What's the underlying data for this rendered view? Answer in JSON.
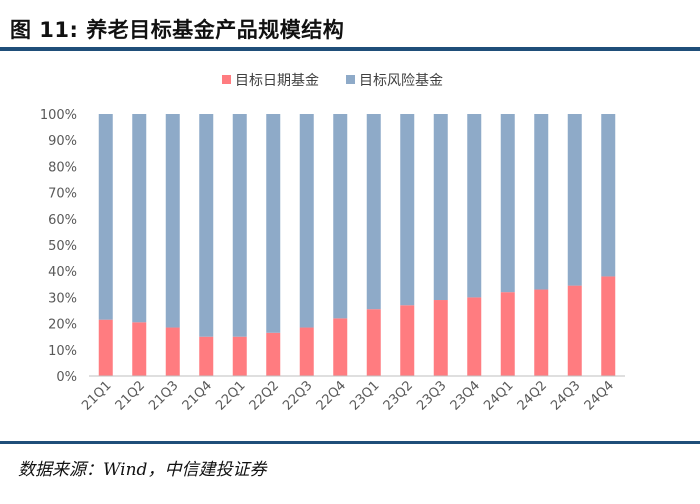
{
  "header": {
    "title": "图 11: 养老目标基金产品规模结构"
  },
  "footer": {
    "source": "数据来源：Wind，中信建投证券"
  },
  "colors": {
    "date_fund": "#ff7c80",
    "risk_fund": "#8eaac8",
    "axis": "#bfbfbf",
    "rule": "#1f4e79"
  },
  "chart_data": {
    "type": "bar",
    "stacked": true,
    "percent": true,
    "categories": [
      "21Q1",
      "21Q2",
      "21Q3",
      "21Q4",
      "22Q1",
      "22Q2",
      "22Q3",
      "22Q4",
      "23Q1",
      "23Q2",
      "23Q3",
      "23Q4",
      "24Q1",
      "24Q2",
      "24Q3",
      "24Q4"
    ],
    "series": [
      {
        "name": "目标日期基金",
        "color": "#ff7c80",
        "values": [
          21.5,
          20.5,
          18.5,
          15,
          15,
          16.5,
          18.5,
          22,
          25.5,
          27,
          29,
          30,
          32,
          33,
          34.5,
          38
        ]
      },
      {
        "name": "目标风险基金",
        "color": "#8eaac8",
        "values": [
          78.5,
          79.5,
          81.5,
          85,
          85,
          83.5,
          81.5,
          78,
          74.5,
          73,
          71,
          70,
          68,
          67,
          65.5,
          62
        ]
      }
    ],
    "y_ticks": [
      "0%",
      "10%",
      "20%",
      "30%",
      "40%",
      "50%",
      "60%",
      "70%",
      "80%",
      "90%",
      "100%"
    ],
    "ylim": [
      0,
      100
    ],
    "legend_position": "top",
    "grid": false
  }
}
